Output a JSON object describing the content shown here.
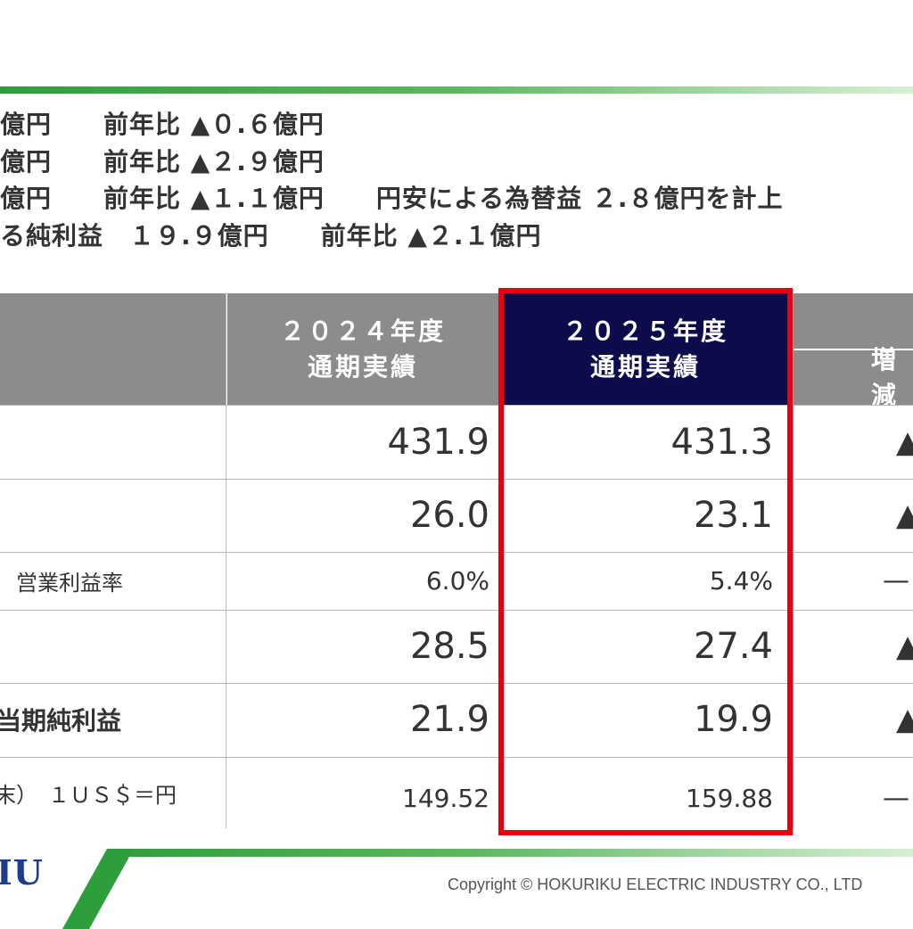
{
  "summary": [
    "億円　　前年比 ▲０.６億円",
    "億円　　前年比 ▲２.９億円",
    "億円　　前年比 ▲１.１億円　　円安による為替益 ２.８億円を計上",
    "る純利益　１９.９億円　　前年比 ▲２.１億円"
  ],
  "table": {
    "header_2024_line1": "２０２４年度",
    "header_2024_line2": "通期実績",
    "header_2025_line1": "２０２５年度",
    "header_2025_line2": "通期実績",
    "header_change": "増減",
    "rows": [
      {
        "label": "",
        "v2024": "431.9",
        "v2025": "431.3",
        "change": "▲"
      },
      {
        "label": "",
        "v2024": "26.0",
        "v2025": "23.1",
        "change": "▲"
      },
      {
        "label": "営業利益率",
        "v2024": "6.0%",
        "v2025": "5.4%",
        "change": "—"
      },
      {
        "label": "",
        "v2024": "28.5",
        "v2025": "27.4",
        "change": "▲"
      },
      {
        "label": "当期純利益",
        "v2024": "21.9",
        "v2025": "19.9",
        "change": "▲"
      },
      {
        "label": "末）　１ＵＳ＄＝円",
        "v2024": "149.52",
        "v2025": "159.88",
        "change": "—"
      }
    ]
  },
  "footer": {
    "logo": "IU",
    "copyright": "Copyright © HOKURIKU ELECTRIC INDUSTRY CO., LTD"
  },
  "colors": {
    "header_gray": "#8c8c8c",
    "header_navy": "#0c0c4c",
    "highlight_red": "#e60012",
    "band_green": "#2e9e3c"
  }
}
